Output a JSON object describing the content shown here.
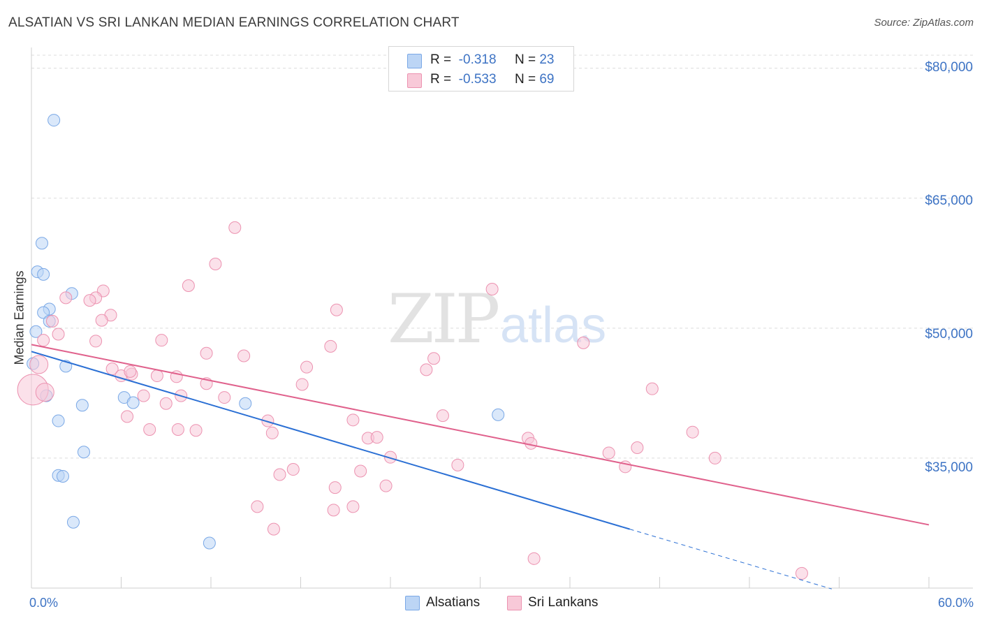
{
  "chart_data": {
    "type": "scatter",
    "title": "ALSATIAN VS SRI LANKAN MEDIAN EARNINGS CORRELATION CHART",
    "source": "Source: ZipAtlas.com",
    "watermark": {
      "bold": "ZIP",
      "light": "atlas"
    },
    "xlabel": "",
    "ylabel": "Median Earnings",
    "xlim": [
      0,
      60
    ],
    "ylim": [
      20000,
      84000
    ],
    "x_tick_labels": {
      "min": "0.0%",
      "max": "60.0%"
    },
    "y_ticks": [
      {
        "value": 80000,
        "label": "$80,000"
      },
      {
        "value": 65000,
        "label": "$65,000"
      },
      {
        "value": 50000,
        "label": "$50,000"
      },
      {
        "value": 35000,
        "label": "$35,000"
      }
    ],
    "legend": [
      {
        "r_label": "R =",
        "r_value": "-0.318",
        "n_label": "N =",
        "n_value": "23"
      },
      {
        "r_label": "R =",
        "r_value": "-0.533",
        "n_label": "N =",
        "n_value": "69"
      }
    ],
    "series": [
      {
        "name": "Alsatians",
        "color": "#7aa8e6",
        "fill": "#bcd5f5",
        "line_color": "#2a6fd4",
        "trend": {
          "x0": 0,
          "y0": 47300,
          "x1": 40,
          "y1": 26800,
          "dash_to_x": 53.5,
          "dash_to_y": 19900
        },
        "points": [
          [
            1.5,
            74000
          ],
          [
            0.7,
            59800
          ],
          [
            0.4,
            56500
          ],
          [
            0.8,
            56200
          ],
          [
            2.7,
            54000
          ],
          [
            1.2,
            52200
          ],
          [
            0.8,
            51800
          ],
          [
            1.2,
            50800
          ],
          [
            0.3,
            49600
          ],
          [
            2.3,
            45600
          ],
          [
            0.1,
            45900
          ],
          [
            1.0,
            42200
          ],
          [
            6.2,
            42000
          ],
          [
            3.4,
            41100
          ],
          [
            6.8,
            41400
          ],
          [
            14.3,
            41300
          ],
          [
            1.8,
            39300
          ],
          [
            3.5,
            35700
          ],
          [
            1.8,
            33000
          ],
          [
            2.1,
            32900
          ],
          [
            2.8,
            27600
          ],
          [
            11.9,
            25200
          ],
          [
            31.2,
            40000
          ]
        ]
      },
      {
        "name": "Sri Lankans",
        "color": "#ec92b0",
        "fill": "#f8c9d8",
        "line_color": "#e0618c",
        "trend": {
          "x0": 0,
          "y0": 48100,
          "x1": 60,
          "y1": 27300
        },
        "points": [
          [
            13.6,
            61600
          ],
          [
            12.3,
            57400
          ],
          [
            10.5,
            54900
          ],
          [
            30.8,
            54500
          ],
          [
            4.8,
            54300
          ],
          [
            4.3,
            53500
          ],
          [
            3.9,
            53200
          ],
          [
            2.3,
            53500
          ],
          [
            20.4,
            52100
          ],
          [
            5.3,
            51500
          ],
          [
            4.7,
            50900
          ],
          [
            1.4,
            50800
          ],
          [
            1.8,
            49300
          ],
          [
            0.8,
            48600
          ],
          [
            4.3,
            48500
          ],
          [
            8.7,
            48600
          ],
          [
            20.0,
            47900
          ],
          [
            11.7,
            47100
          ],
          [
            14.2,
            46800
          ],
          [
            26.9,
            46500
          ],
          [
            0.5,
            45800
          ],
          [
            5.4,
            45300
          ],
          [
            18.4,
            45500
          ],
          [
            26.4,
            45200
          ],
          [
            6.7,
            44700
          ],
          [
            6.0,
            44500
          ],
          [
            6.6,
            45000
          ],
          [
            8.4,
            44500
          ],
          [
            9.7,
            44400
          ],
          [
            11.7,
            43600
          ],
          [
            18.1,
            43500
          ],
          [
            0.1,
            42900
          ],
          [
            7.5,
            42200
          ],
          [
            10.0,
            42200
          ],
          [
            12.9,
            42000
          ],
          [
            9.0,
            41300
          ],
          [
            41.5,
            43000
          ],
          [
            6.4,
            39800
          ],
          [
            15.8,
            39300
          ],
          [
            21.5,
            39400
          ],
          [
            27.5,
            39900
          ],
          [
            7.9,
            38300
          ],
          [
            9.8,
            38300
          ],
          [
            11.0,
            38200
          ],
          [
            16.1,
            37900
          ],
          [
            22.5,
            37300
          ],
          [
            23.1,
            37400
          ],
          [
            33.2,
            37300
          ],
          [
            33.4,
            36700
          ],
          [
            44.2,
            38000
          ],
          [
            38.6,
            35600
          ],
          [
            40.5,
            36200
          ],
          [
            45.7,
            35000
          ],
          [
            24.0,
            35100
          ],
          [
            28.5,
            34200
          ],
          [
            39.7,
            34000
          ],
          [
            17.5,
            33700
          ],
          [
            22.0,
            33500
          ],
          [
            16.6,
            33100
          ],
          [
            20.3,
            31600
          ],
          [
            23.7,
            31800
          ],
          [
            15.1,
            29400
          ],
          [
            20.2,
            29000
          ],
          [
            21.5,
            29400
          ],
          [
            16.2,
            26800
          ],
          [
            33.6,
            23400
          ],
          [
            51.5,
            21700
          ],
          [
            36.9,
            48300
          ],
          [
            0.9,
            42600
          ]
        ]
      }
    ]
  }
}
